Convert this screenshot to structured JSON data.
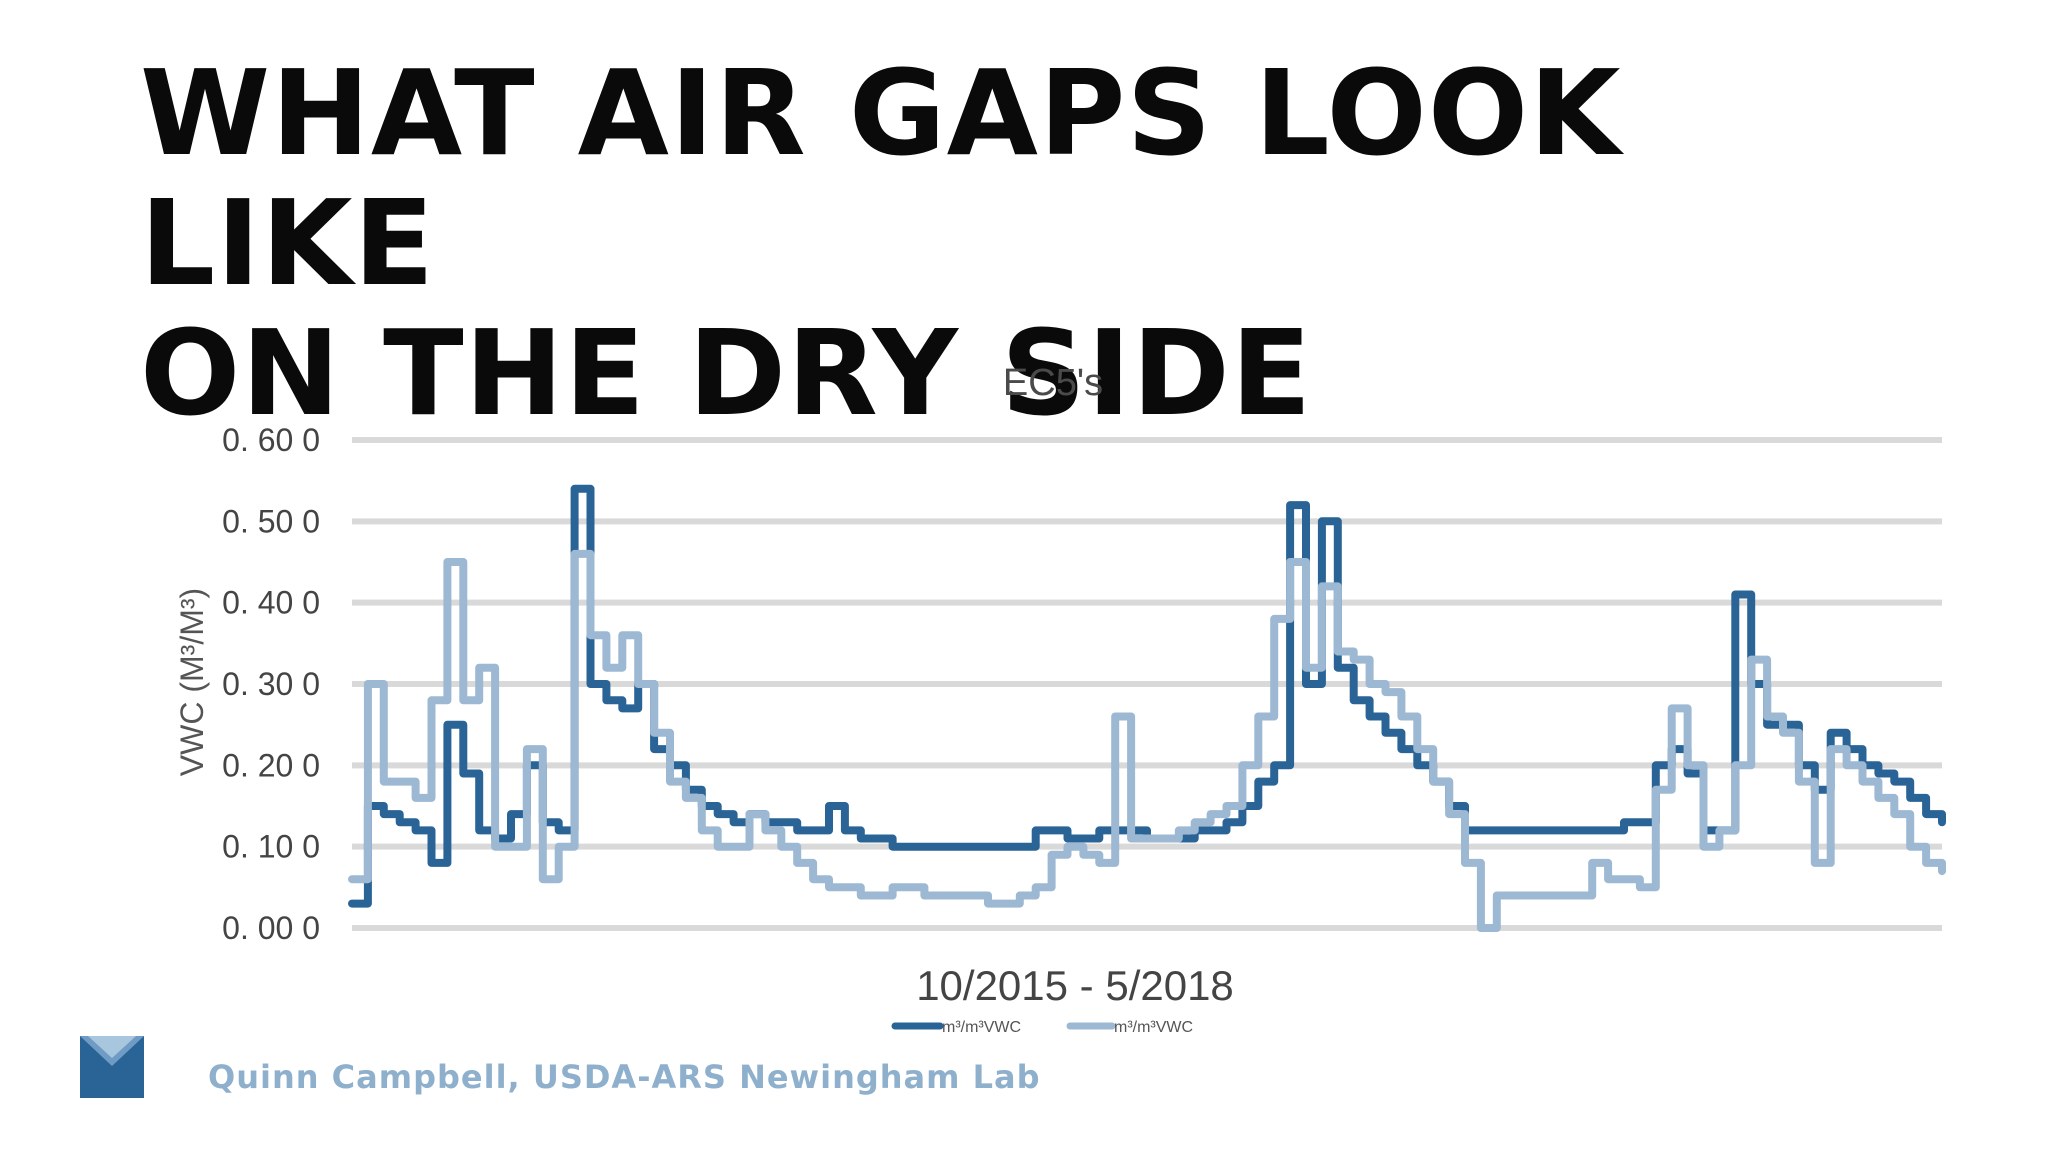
{
  "slide": {
    "title_line1": "WHAT AIR GAPS LOOK LIKE",
    "title_line2": "ON THE DRY SIDE",
    "credit": "Quinn Campbell, USDA-ARS Newingham Lab"
  },
  "colors": {
    "series_dark": "#2a6496",
    "series_light": "#9cb8d2",
    "grid": "#d9d9d9",
    "logo": "#2a6496"
  },
  "icons": {
    "logo": "envelope-mark-icon"
  },
  "chart_data": {
    "type": "line",
    "title": "EC5's",
    "xlabel": "10/2015 - 5/2018",
    "ylabel": "VWC (M³/M³)",
    "ylim": [
      0,
      0.6
    ],
    "yticks": [
      0,
      0.1,
      0.2,
      0.3,
      0.4,
      0.5,
      0.6
    ],
    "ytick_labels": [
      "0. 00 0",
      "0. 10 0",
      "0. 20 0",
      "0. 30 0",
      "0. 40 0",
      "0. 50 0",
      "0. 60 0"
    ],
    "grid": true,
    "legend_position": "bottom",
    "x": [
      0,
      1,
      2,
      3,
      4,
      5,
      6,
      7,
      8,
      9,
      10,
      11,
      12,
      13,
      14,
      15,
      16,
      17,
      18,
      19,
      20,
      21,
      22,
      23,
      24,
      25,
      26,
      27,
      28,
      29,
      30,
      31,
      32,
      33,
      34,
      35,
      36,
      37,
      38,
      39,
      40,
      41,
      42,
      43,
      44,
      45,
      46,
      47,
      48,
      49,
      50,
      51,
      52,
      53,
      54,
      55,
      56,
      57,
      58,
      59,
      60,
      61,
      62,
      63,
      64,
      65,
      66,
      67,
      68,
      69,
      70,
      71,
      72,
      73,
      74,
      75,
      76,
      77,
      78,
      79,
      80,
      81,
      82,
      83,
      84,
      85,
      86,
      87,
      88,
      89,
      90,
      91,
      92,
      93,
      94,
      95,
      96,
      97,
      98,
      99,
      100
    ],
    "series": [
      {
        "name": "m³/m³VWC",
        "color": "#2a6496",
        "values": [
          0.03,
          0.15,
          0.14,
          0.13,
          0.12,
          0.08,
          0.25,
          0.19,
          0.12,
          0.11,
          0.14,
          0.2,
          0.13,
          0.12,
          0.54,
          0.3,
          0.28,
          0.27,
          0.3,
          0.22,
          0.2,
          0.17,
          0.15,
          0.14,
          0.13,
          0.14,
          0.13,
          0.13,
          0.12,
          0.12,
          0.15,
          0.12,
          0.11,
          0.11,
          0.1,
          0.1,
          0.1,
          0.1,
          0.1,
          0.1,
          0.1,
          0.1,
          0.1,
          0.12,
          0.12,
          0.11,
          0.11,
          0.12,
          0.12,
          0.12,
          0.11,
          0.11,
          0.11,
          0.12,
          0.12,
          0.13,
          0.15,
          0.18,
          0.2,
          0.52,
          0.3,
          0.5,
          0.32,
          0.28,
          0.26,
          0.24,
          0.22,
          0.2,
          0.18,
          0.15,
          0.12,
          0.12,
          0.12,
          0.12,
          0.12,
          0.12,
          0.12,
          0.12,
          0.12,
          0.12,
          0.13,
          0.13,
          0.2,
          0.22,
          0.19,
          0.12,
          0.12,
          0.41,
          0.3,
          0.25,
          0.25,
          0.2,
          0.17,
          0.24,
          0.22,
          0.2,
          0.19,
          0.18,
          0.16,
          0.14,
          0.13
        ]
      },
      {
        "name": "m³/m³VWC",
        "color": "#9cb8d2",
        "values": [
          0.06,
          0.3,
          0.18,
          0.18,
          0.16,
          0.28,
          0.45,
          0.28,
          0.32,
          0.1,
          0.1,
          0.22,
          0.06,
          0.1,
          0.46,
          0.36,
          0.32,
          0.36,
          0.3,
          0.24,
          0.18,
          0.16,
          0.12,
          0.1,
          0.1,
          0.14,
          0.12,
          0.1,
          0.08,
          0.06,
          0.05,
          0.05,
          0.04,
          0.04,
          0.05,
          0.05,
          0.04,
          0.04,
          0.04,
          0.04,
          0.03,
          0.03,
          0.04,
          0.05,
          0.09,
          0.1,
          0.09,
          0.08,
          0.26,
          0.11,
          0.11,
          0.11,
          0.12,
          0.13,
          0.14,
          0.15,
          0.2,
          0.26,
          0.38,
          0.45,
          0.32,
          0.42,
          0.34,
          0.33,
          0.3,
          0.29,
          0.26,
          0.22,
          0.18,
          0.14,
          0.08,
          0.0,
          0.04,
          0.04,
          0.04,
          0.04,
          0.04,
          0.04,
          0.08,
          0.06,
          0.06,
          0.05,
          0.17,
          0.27,
          0.2,
          0.1,
          0.12,
          0.2,
          0.33,
          0.26,
          0.24,
          0.18,
          0.08,
          0.22,
          0.2,
          0.18,
          0.16,
          0.14,
          0.1,
          0.08,
          0.07
        ]
      }
    ]
  }
}
